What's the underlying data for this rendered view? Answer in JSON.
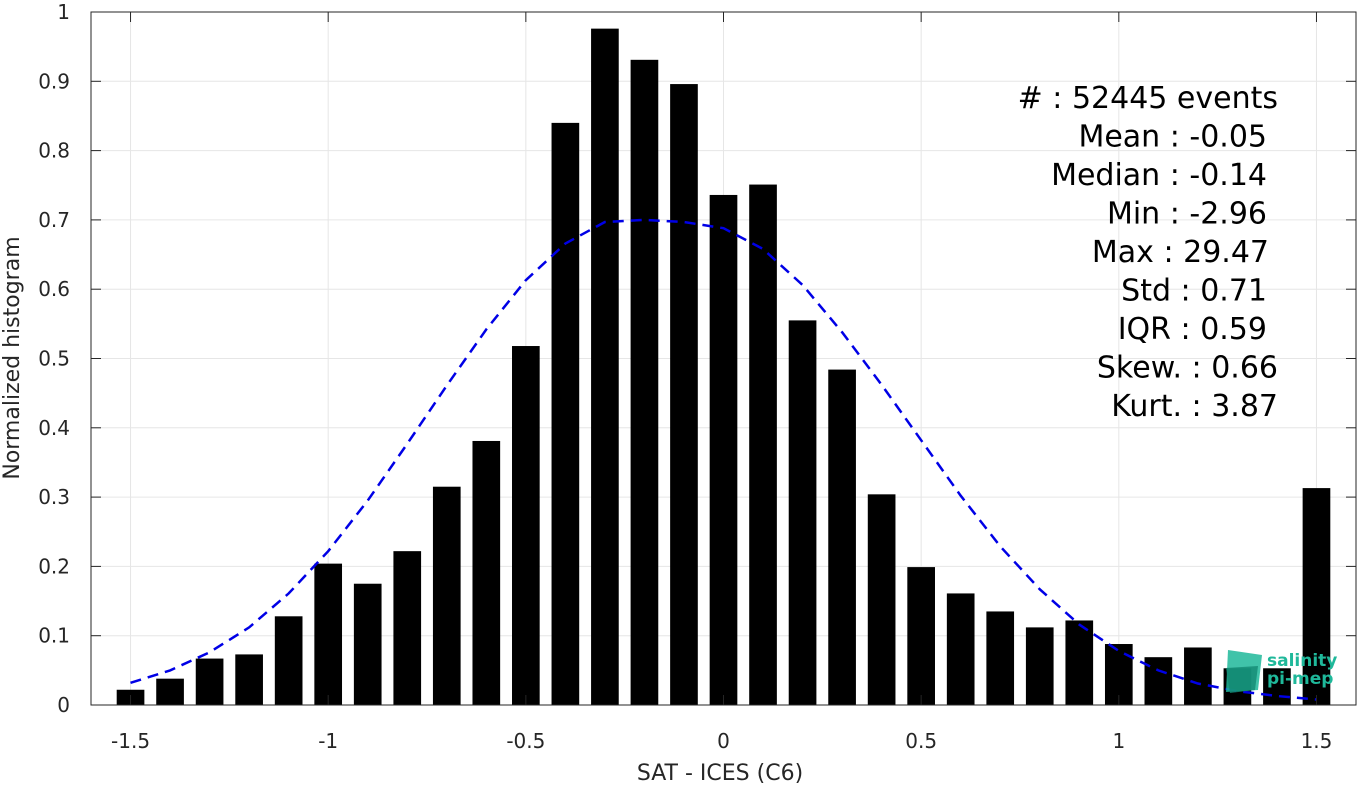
{
  "chart_data": {
    "type": "bar",
    "xlabel": "SAT - ICES (C6)",
    "ylabel": "Normalized histogram",
    "xlim": [
      -1.6,
      1.6
    ],
    "ylim": [
      0,
      1
    ],
    "grid": true,
    "x_ticks": [
      -1.5,
      -1,
      -0.5,
      0,
      0.5,
      1,
      1.5
    ],
    "x_tick_labels": [
      "-1.5",
      "-1",
      "-0.5",
      "0",
      "0.5",
      "1",
      "1.5"
    ],
    "y_ticks": [
      0,
      0.1,
      0.2,
      0.3,
      0.4,
      0.5,
      0.6,
      0.7,
      0.8,
      0.9,
      1
    ],
    "y_tick_labels": [
      "0",
      "0.1",
      "0.2",
      "0.3",
      "0.4",
      "0.5",
      "0.6",
      "0.7",
      "0.8",
      "0.9",
      "1"
    ],
    "bar_width": 0.07,
    "bars": {
      "x": [
        -1.5,
        -1.4,
        -1.3,
        -1.2,
        -1.1,
        -1.0,
        -0.9,
        -0.8,
        -0.7,
        -0.6,
        -0.5,
        -0.4,
        -0.3,
        -0.2,
        -0.1,
        0.0,
        0.1,
        0.2,
        0.3,
        0.4,
        0.5,
        0.6,
        0.7,
        0.8,
        0.9,
        1.0,
        1.1,
        1.2,
        1.3,
        1.4,
        1.5
      ],
      "values": [
        0.022,
        0.038,
        0.067,
        0.073,
        0.128,
        0.204,
        0.175,
        0.222,
        0.315,
        0.381,
        0.518,
        0.84,
        0.976,
        0.931,
        0.896,
        0.736,
        0.751,
        0.555,
        0.484,
        0.304,
        0.199,
        0.161,
        0.135,
        0.112,
        0.122,
        0.088,
        0.069,
        0.083,
        0.053,
        0.053,
        0.313
      ]
    },
    "fit_curve": {
      "style": "dashed",
      "color": "#0000e6",
      "x": [
        -1.5,
        -1.4,
        -1.3,
        -1.2,
        -1.1,
        -1.0,
        -0.9,
        -0.8,
        -0.7,
        -0.6,
        -0.5,
        -0.4,
        -0.3,
        -0.2,
        -0.1,
        0.0,
        0.1,
        0.2,
        0.3,
        0.4,
        0.5,
        0.6,
        0.7,
        0.8,
        0.9,
        1.0,
        1.1,
        1.2,
        1.3,
        1.4,
        1.5
      ],
      "y": [
        0.032,
        0.05,
        0.076,
        0.112,
        0.161,
        0.222,
        0.295,
        0.377,
        0.461,
        0.542,
        0.613,
        0.666,
        0.697,
        0.7,
        0.697,
        0.688,
        0.658,
        0.606,
        0.538,
        0.462,
        0.382,
        0.302,
        0.229,
        0.167,
        0.116,
        0.078,
        0.05,
        0.031,
        0.02,
        0.013,
        0.008
      ]
    },
    "bar_color": "#000000",
    "stats_lines": [
      "#  : 52445 events",
      "Mean : -0.05",
      "Median : -0.14",
      "Min : -2.96",
      "Max : 29.47",
      "Std : 0.71",
      "IQR : 0.59",
      "Skew. : 0.66",
      "Kurt. : 3.87"
    ]
  },
  "logo": {
    "line1": "salinity",
    "line2": "pi-mep",
    "color": "#1fb89a"
  }
}
